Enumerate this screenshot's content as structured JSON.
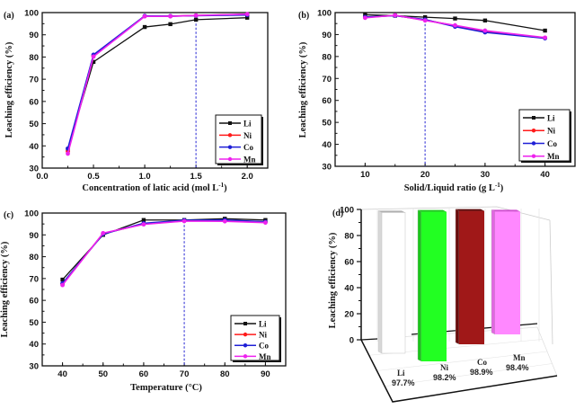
{
  "colors": {
    "Li": "#111111",
    "Ni": "#ff1a1a",
    "Co": "#1f1fd6",
    "Mn": "#ee22ee",
    "ref_line": "#3a3ad8"
  },
  "chart_data": [
    {
      "type": "line",
      "panel_label": "(a)",
      "xlabel": "Concentration of latic acid (mol L",
      "xlabel_sup": "-1",
      "xlabel_end": ")",
      "ylabel": "Leaching efficiency (%)",
      "xlim": [
        0.0,
        2.2
      ],
      "ylim": [
        30,
        100
      ],
      "xticks": [
        "0.0",
        "0.5",
        "1.0",
        "1.5",
        "2.0"
      ],
      "xtick_values": [
        0.0,
        0.5,
        1.0,
        1.5,
        2.0
      ],
      "yticks": [
        "30",
        "40",
        "50",
        "60",
        "70",
        "80",
        "90",
        "100"
      ],
      "ytick_values": [
        30,
        40,
        50,
        60,
        70,
        80,
        90,
        100
      ],
      "reference_x": 1.5,
      "legend_position": "bottom-right",
      "x": [
        0.25,
        0.5,
        1.0,
        1.25,
        1.5,
        2.0
      ],
      "series": [
        {
          "name": "Li",
          "values": [
            38.5,
            77.8,
            93.5,
            94.8,
            96.8,
            97.7
          ]
        },
        {
          "name": "Ni",
          "values": [
            37.5,
            80.5,
            98.4,
            98.4,
            98.7,
            99.2
          ]
        },
        {
          "name": "Co",
          "values": [
            38.8,
            81.0,
            98.5,
            98.4,
            98.6,
            98.9
          ]
        },
        {
          "name": "Mn",
          "values": [
            36.5,
            80.2,
            98.3,
            98.3,
            98.7,
            99.3
          ]
        }
      ]
    },
    {
      "type": "line",
      "panel_label": "(b)",
      "xlabel": "Solid/Liquid ratio (g L",
      "xlabel_sup": "-1",
      "xlabel_end": ")",
      "ylabel": "Leaching efficiency (%)",
      "xlim": [
        5,
        45
      ],
      "ylim": [
        30,
        100
      ],
      "xticks": [
        "10",
        "20",
        "30",
        "40"
      ],
      "xtick_values": [
        10,
        20,
        30,
        40
      ],
      "yticks": [
        "30",
        "40",
        "50",
        "60",
        "70",
        "80",
        "90",
        "100"
      ],
      "ytick_values": [
        30,
        40,
        50,
        60,
        70,
        80,
        90,
        100
      ],
      "reference_x": 20,
      "legend_position": "bottom-right",
      "x": [
        10,
        15,
        20,
        25,
        30,
        40
      ],
      "series": [
        {
          "name": "Li",
          "values": [
            99.0,
            98.6,
            97.9,
            97.3,
            96.4,
            91.8
          ]
        },
        {
          "name": "Ni",
          "values": [
            97.8,
            98.7,
            96.6,
            94.0,
            91.5,
            88.5
          ]
        },
        {
          "name": "Co",
          "values": [
            98.0,
            98.6,
            96.8,
            93.6,
            91.0,
            88.3
          ]
        },
        {
          "name": "Mn",
          "values": [
            97.6,
            98.8,
            96.4,
            94.2,
            91.8,
            88.6
          ]
        }
      ]
    },
    {
      "type": "line",
      "panel_label": "(c)",
      "xlabel": "Temperature (°C)",
      "xlabel_sup": "",
      "xlabel_end": "",
      "ylabel": "Leaching efficiency (%)",
      "xlim": [
        35,
        95
      ],
      "ylim": [
        30,
        100
      ],
      "xticks": [
        "40",
        "50",
        "60",
        "70",
        "80",
        "90"
      ],
      "xtick_values": [
        40,
        50,
        60,
        70,
        80,
        90
      ],
      "yticks": [
        "30",
        "40",
        "50",
        "60",
        "70",
        "80",
        "90",
        "100"
      ],
      "ytick_values": [
        30,
        40,
        50,
        60,
        70,
        80,
        90,
        100
      ],
      "reference_x": 70,
      "legend_position": "bottom-right",
      "x": [
        40,
        50,
        60,
        70,
        80,
        90
      ],
      "series": [
        {
          "name": "Li",
          "values": [
            69.5,
            90.0,
            96.8,
            96.8,
            97.4,
            96.8
          ]
        },
        {
          "name": "Ni",
          "values": [
            67.5,
            90.6,
            95.0,
            96.4,
            96.6,
            95.8
          ]
        },
        {
          "name": "Co",
          "values": [
            67.8,
            90.4,
            95.3,
            96.7,
            96.8,
            96.0
          ]
        },
        {
          "name": "Mn",
          "values": [
            67.0,
            90.8,
            94.8,
            96.3,
            96.2,
            95.6
          ]
        }
      ]
    },
    {
      "type": "bar",
      "style": "3d",
      "panel_label": "(d)",
      "ylabel": "Leaching efficiency (%)",
      "ylim": [
        0,
        100
      ],
      "yticks": [
        "0",
        "20",
        "40",
        "60",
        "80",
        "100"
      ],
      "ytick_values": [
        0,
        20,
        40,
        60,
        80,
        100
      ],
      "categories": [
        "Li",
        "Ni",
        "Co",
        "Mn"
      ],
      "values": [
        97.7,
        98.2,
        98.9,
        98.4
      ],
      "value_labels": [
        "97.7%",
        "98.2%",
        "98.9%",
        "98.4%"
      ],
      "bar_colors": [
        "#ffffff",
        "#22ff22",
        "#a01818",
        "#ff88ff"
      ]
    }
  ]
}
